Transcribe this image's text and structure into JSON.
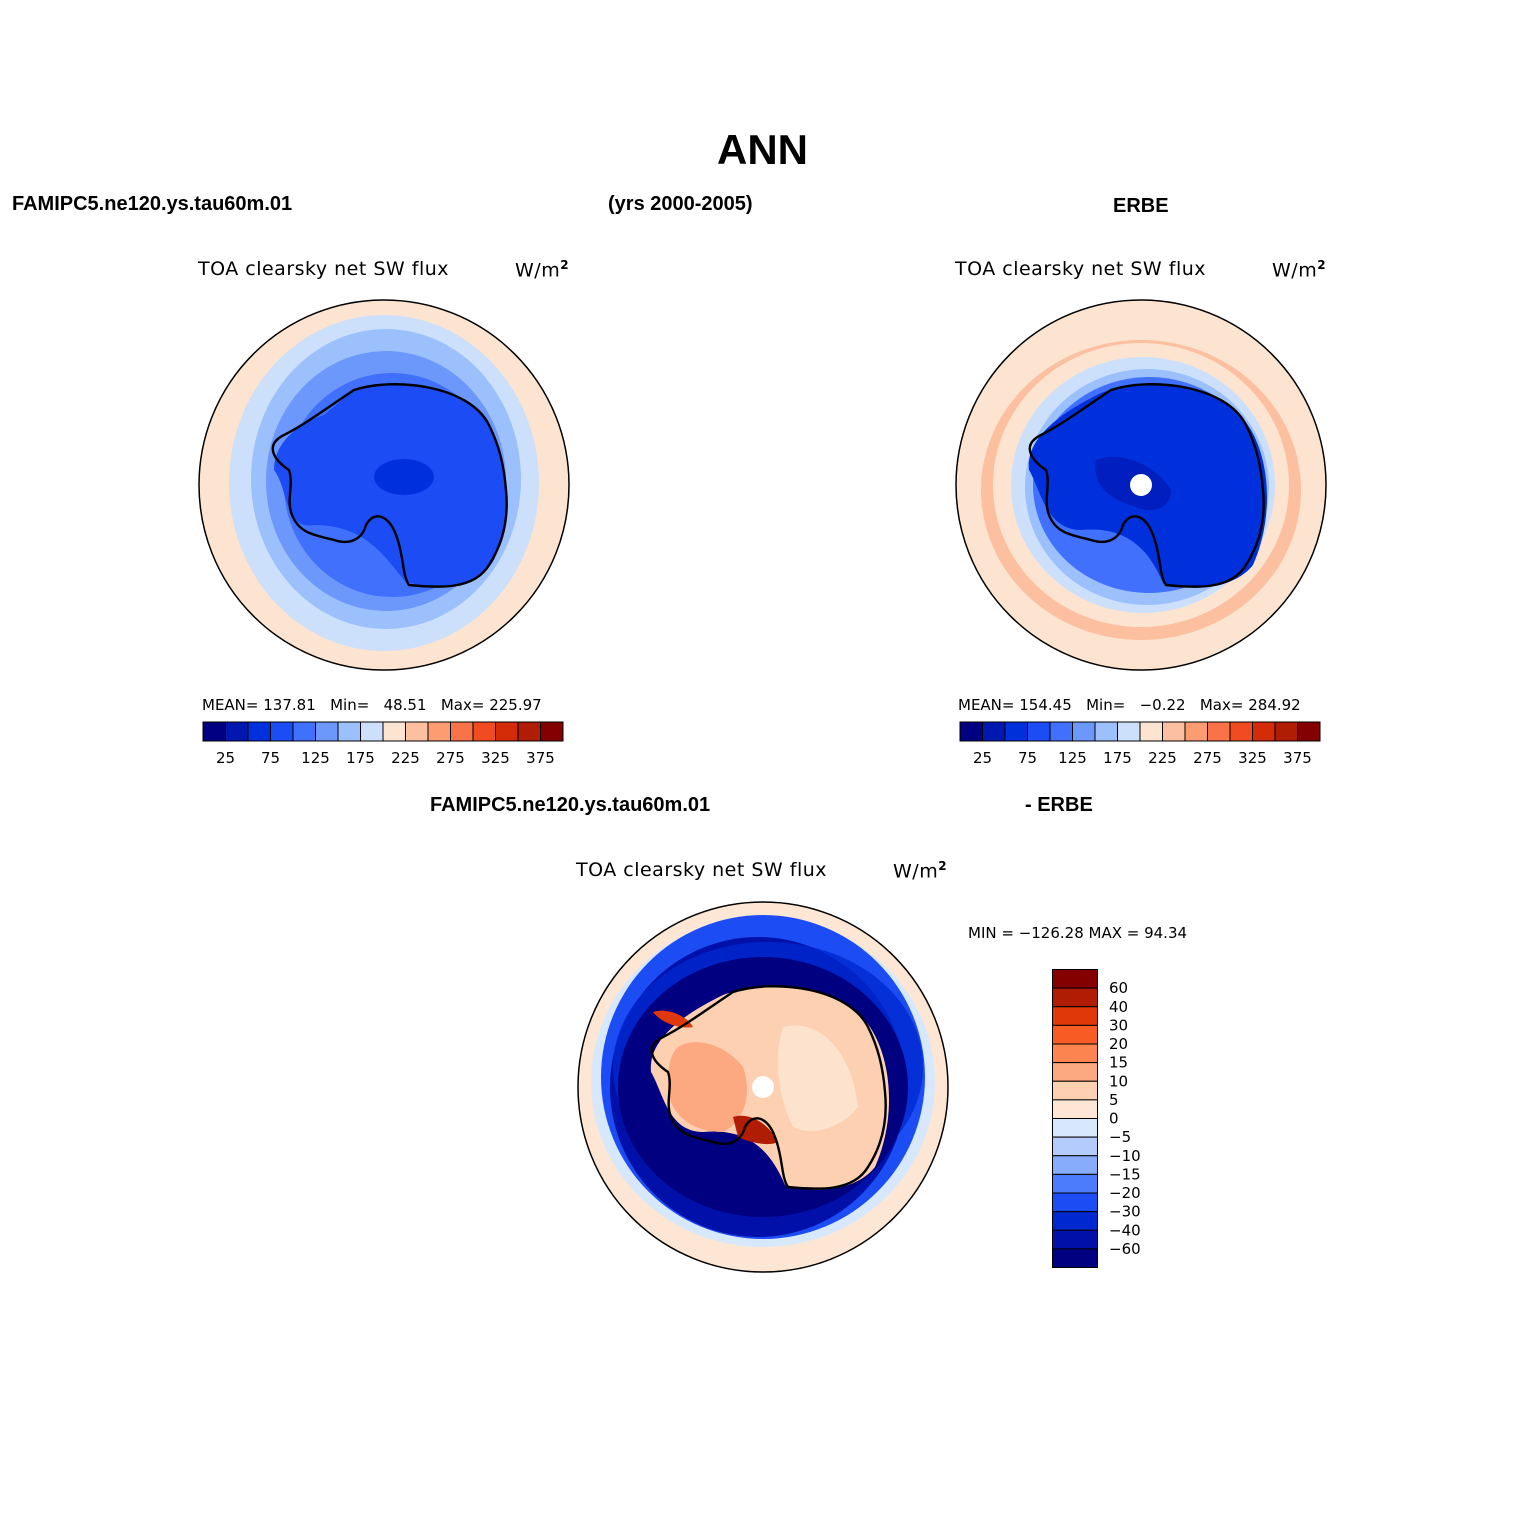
{
  "figure": {
    "title": "ANN",
    "case_name": "FAMIPC5.ne120.ys.tau60m.01",
    "years": "(yrs 2000-2005)",
    "obs_name": "ERBE",
    "diff_left": "FAMIPC5.ne120.ys.tau60m.01",
    "diff_right": "- ERBE"
  },
  "panels": [
    {
      "field": "TOA clearsky net SW flux",
      "units": "W/m",
      "units_sup": "2",
      "stats": {
        "mean_label": "MEAN=",
        "mean": "137.81",
        "min_label": "Min=",
        "min": "48.51",
        "max_label": "Max=",
        "max": "225.97"
      }
    },
    {
      "field": "TOA clearsky net SW flux",
      "units": "W/m",
      "units_sup": "2",
      "stats": {
        "mean_label": "MEAN=",
        "mean": "154.45",
        "min_label": "Min=",
        "min": "−0.22",
        "max_label": "Max=",
        "max": "284.92"
      }
    },
    {
      "field": "TOA clearsky net SW flux",
      "units": "W/m",
      "units_sup": "2",
      "minmax": "MIN = −126.28 MAX =  94.34"
    }
  ],
  "chart_data": [
    {
      "type": "heatmap",
      "projection": "south polar stereographic",
      "colorbar_orientation": "horizontal",
      "levels": [
        "25",
        "75",
        "125",
        "175",
        "225",
        "275",
        "325",
        "375"
      ],
      "colors": [
        "#000080",
        "#0018b0",
        "#0030dc",
        "#1c4cf4",
        "#4070fc",
        "#6c98fc",
        "#9cc0fc",
        "#cce0fc",
        "#fde4d0",
        "#fcc0a0",
        "#fc9c70",
        "#f87448",
        "#f04c20",
        "#d42c08",
        "#b01c04",
        "#840000"
      ]
    },
    {
      "type": "heatmap",
      "projection": "south polar stereographic",
      "colorbar_orientation": "horizontal",
      "levels": [
        "25",
        "75",
        "125",
        "175",
        "225",
        "275",
        "325",
        "375"
      ],
      "colors": [
        "#000080",
        "#0018b0",
        "#0030dc",
        "#1c4cf4",
        "#4070fc",
        "#6c98fc",
        "#9cc0fc",
        "#cce0fc",
        "#fde4d0",
        "#fcc0a0",
        "#fc9c70",
        "#f87448",
        "#f04c20",
        "#d42c08",
        "#b01c04",
        "#840000"
      ]
    },
    {
      "type": "heatmap",
      "projection": "south polar stereographic",
      "colorbar_orientation": "vertical",
      "levels": [
        "60",
        "40",
        "30",
        "20",
        "15",
        "10",
        "5",
        "0",
        "−5",
        "−10",
        "−15",
        "−20",
        "−30",
        "−40",
        "−60"
      ],
      "colors": [
        "#840000",
        "#b01c04",
        "#e03808",
        "#f85c24",
        "#fc8450",
        "#fca880",
        "#fcd0b0",
        "#fde6d4",
        "#d8e8fc",
        "#b4ccfc",
        "#88acfc",
        "#4c7cfc",
        "#1c4cf4",
        "#0028d0",
        "#0010a8",
        "#000080"
      ]
    }
  ]
}
